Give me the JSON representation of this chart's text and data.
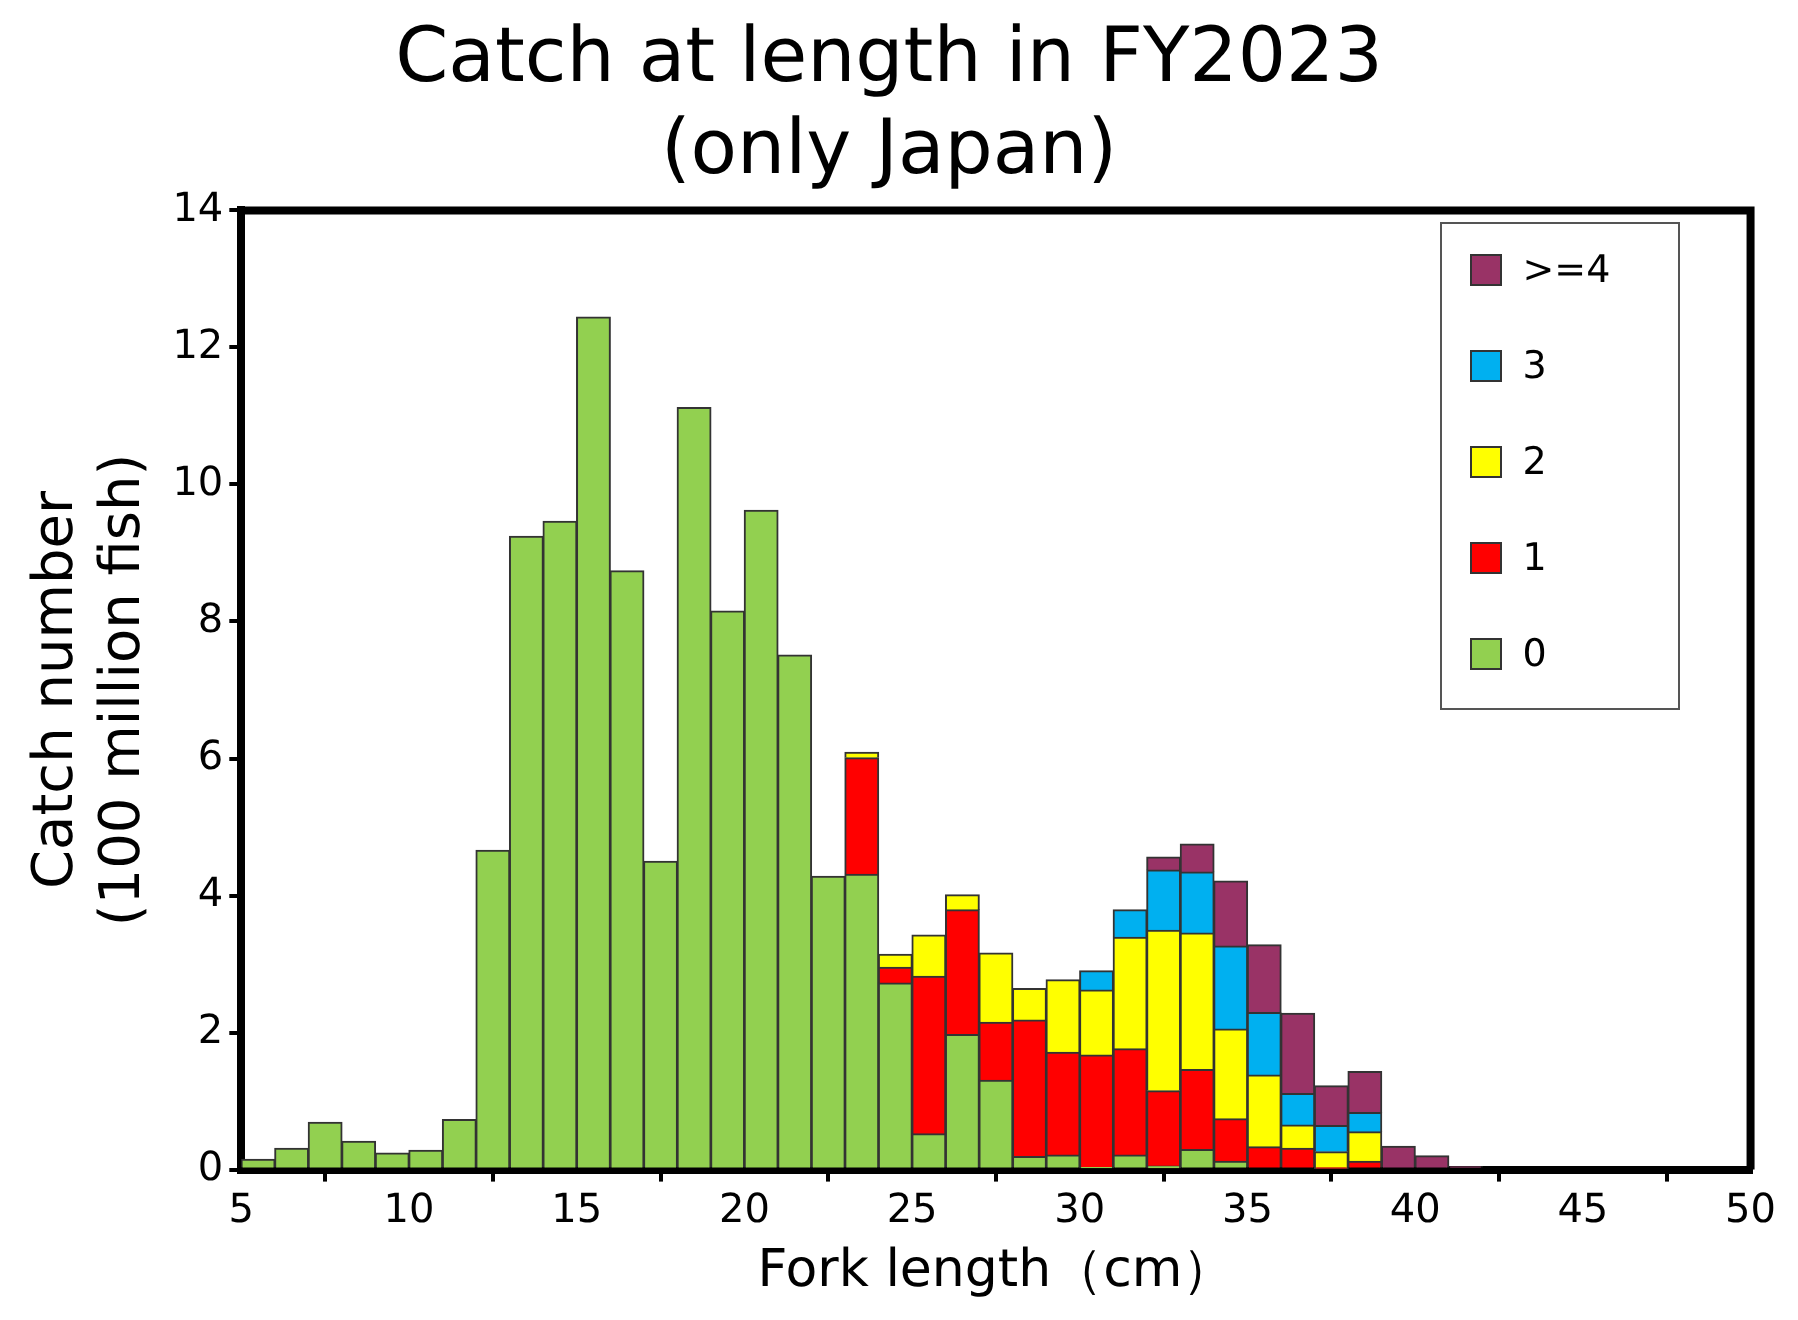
{
  "chart_data": {
    "type": "bar",
    "title": "Catch at length in FY2023\n(only Japan)",
    "xlabel": "Fork length（cm）",
    "ylabel": "Catch number\n(100 million fish)",
    "x": [
      5.5,
      6.5,
      7.5,
      8.5,
      9.5,
      10.5,
      11.5,
      12.5,
      13.5,
      14.5,
      15.5,
      16.5,
      17.5,
      18.5,
      19.5,
      20.5,
      21.5,
      22.5,
      23.5,
      24.5,
      25.5,
      26.5,
      27.5,
      28.5,
      29.5,
      30.5,
      31.5,
      32.5,
      33.5,
      34.5,
      35.5,
      36.5,
      37.5,
      38.5,
      39.5,
      40.5,
      41.5
    ],
    "stacked": true,
    "legend": "top right",
    "grid": false,
    "xlim": [
      5,
      50
    ],
    "xticks": [
      5,
      10,
      15,
      20,
      25,
      30,
      35,
      40,
      45,
      50
    ],
    "ylim": [
      0,
      14
    ],
    "yticks": [
      0,
      2,
      4,
      6,
      8,
      10,
      12,
      14
    ],
    "series": [
      {
        "name": "0",
        "color": "#92d050",
        "values": [
          0.15,
          0.31,
          0.69,
          0.41,
          0.24,
          0.28,
          0.73,
          4.66,
          9.24,
          9.46,
          12.44,
          8.74,
          4.5,
          11.12,
          8.15,
          9.62,
          7.51,
          4.28,
          4.31,
          2.72,
          0.52,
          1.97,
          1.3,
          0.19,
          0.21,
          0.03,
          0.21,
          0.05,
          0.29,
          0.12,
          0,
          0,
          0,
          0,
          0,
          0,
          0
        ]
      },
      {
        "name": "1",
        "color": "#ff0000",
        "values": [
          0,
          0,
          0,
          0,
          0,
          0,
          0,
          0,
          0,
          0,
          0,
          0,
          0,
          0,
          0,
          0,
          0,
          0,
          1.7,
          0.23,
          2.3,
          1.82,
          0.85,
          1.99,
          1.5,
          1.64,
          1.55,
          1.1,
          1.17,
          0.62,
          0.33,
          0.31,
          0.02,
          0.12,
          0,
          0,
          0
        ]
      },
      {
        "name": "2",
        "color": "#ffff00",
        "values": [
          0,
          0,
          0,
          0,
          0,
          0,
          0,
          0,
          0,
          0,
          0,
          0,
          0,
          0,
          0,
          0,
          0,
          0,
          0.08,
          0.19,
          0.6,
          0.22,
          1.01,
          0.46,
          1.06,
          0.95,
          1.63,
          2.34,
          1.99,
          1.31,
          1.05,
          0.34,
          0.24,
          0.43,
          0,
          0,
          0
        ]
      },
      {
        "name": "3",
        "color": "#00b0f0",
        "values": [
          0,
          0,
          0,
          0,
          0,
          0,
          0,
          0,
          0,
          0,
          0,
          0,
          0,
          0,
          0,
          0,
          0,
          0,
          0,
          0,
          0,
          0,
          0,
          0,
          0,
          0.28,
          0.4,
          0.88,
          0.89,
          1.21,
          0.91,
          0.46,
          0.38,
          0.28,
          0,
          0,
          0
        ]
      },
      {
        "name": ">=4",
        "color": "#993366",
        "values": [
          0,
          0,
          0,
          0,
          0,
          0,
          0,
          0,
          0,
          0,
          0,
          0,
          0,
          0,
          0,
          0,
          0,
          0,
          0,
          0,
          0,
          0,
          0,
          0,
          0,
          0,
          0,
          0.19,
          0.41,
          0.95,
          0.99,
          1.17,
          0.58,
          0.6,
          0.34,
          0.2,
          0.04
        ]
      }
    ]
  }
}
